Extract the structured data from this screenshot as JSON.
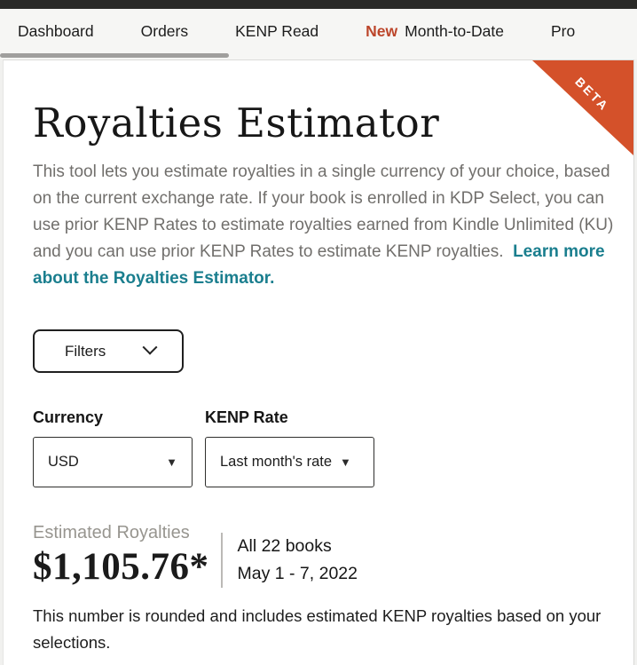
{
  "nav": {
    "tabs": [
      {
        "label": "Dashboard"
      },
      {
        "label": "Orders"
      },
      {
        "label": "KENP Read"
      },
      {
        "label": "Month-to-Date",
        "badge": "New"
      },
      {
        "label": "Pro"
      }
    ]
  },
  "beta": {
    "label": "BETA",
    "color": "#d4512a"
  },
  "header": {
    "title": "Royalties Estimator",
    "description": "This tool lets you estimate royalties in a single currency of your choice, based on the current exchange rate. If your book is enrolled in KDP Select, you can use prior KENP Rates to estimate royalties earned from Kindle Unlimited (KU) and you can use prior KENP Rates to estimate KENP royalties.",
    "link_text": "Learn more about the Royalties Estimator.",
    "link_color": "#1a7e8e"
  },
  "filters": {
    "label": "Filters"
  },
  "controls": {
    "currency": {
      "label": "Currency",
      "value": "USD"
    },
    "kenp_rate": {
      "label": "KENP Rate",
      "value": "Last month's rate"
    }
  },
  "summary": {
    "estimated_label": "Estimated Royalties",
    "amount": "$1,105.76*",
    "books": "All 22 books",
    "date_range": "May 1 - 7, 2022"
  },
  "footnote": "This number is rounded and includes estimated KENP royalties based on your selections.",
  "accent_colors": {
    "new_badge": "#bc452a",
    "topbar": "#2a2a28",
    "nav_background": "#f6f6f4"
  }
}
